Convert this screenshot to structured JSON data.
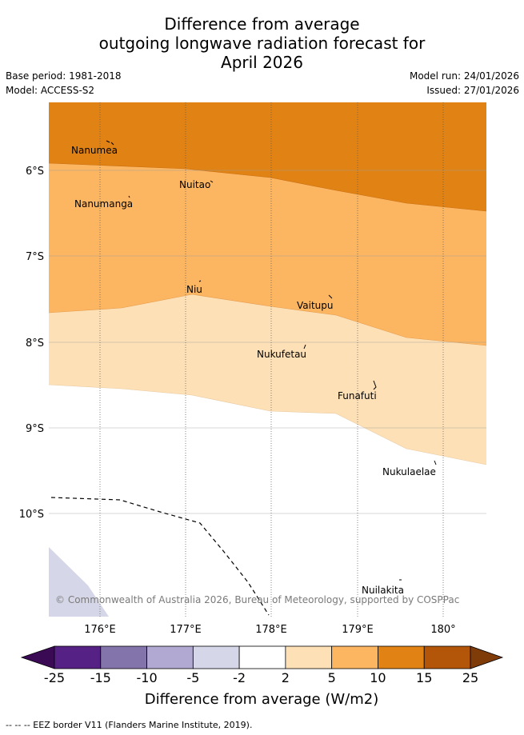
{
  "header": {
    "title_line1": "Difference from average",
    "title_line2": "outgoing longwave radiation forecast for",
    "title_line3": "April 2026",
    "base_period": "Base period: 1981-2018",
    "model": "Model: ACCESS-S2",
    "model_run": "Model run: 24/01/2026",
    "issued": "Issued: 27/01/2026"
  },
  "map": {
    "lat_labels": [
      "6°S",
      "7°S",
      "8°S",
      "9°S",
      "10°S"
    ],
    "lon_labels": [
      "176°E",
      "177°E",
      "178°E",
      "179°E",
      "180°"
    ],
    "islands": [
      "Nanumea",
      "Nuitao",
      "Nanumanga",
      "Niu",
      "Vaitupu",
      "Nukufetau",
      "Funafuti",
      "Nukulaelae",
      "Nuilakita"
    ],
    "copyright": "© Commonwealth of Australia 2026, Bureau of Meteorology, supported by COSPPac",
    "colors": {
      "plus10_15": "#e08314",
      "plus5_10": "#fcb662",
      "plus2_5": "#fde0b6",
      "minus2_2": "#ffffff",
      "minus5_2": "#d6d6e9"
    }
  },
  "colorbar": {
    "ticks": [
      "-25",
      "-15",
      "-10",
      "-5",
      "-2",
      "2",
      "5",
      "10",
      "15",
      "25"
    ],
    "colors": [
      "#3b0a55",
      "#562184",
      "#8474ac",
      "#b1a9d1",
      "#d6d6e9",
      "#ffffff",
      "#fde0b6",
      "#fcb662",
      "#e08314",
      "#b45609",
      "#7f3b08"
    ],
    "label": "Difference from average (W/m2)"
  },
  "footnote": "-- -- -- EEZ border V11 (Flanders Marine Institute, 2019)."
}
